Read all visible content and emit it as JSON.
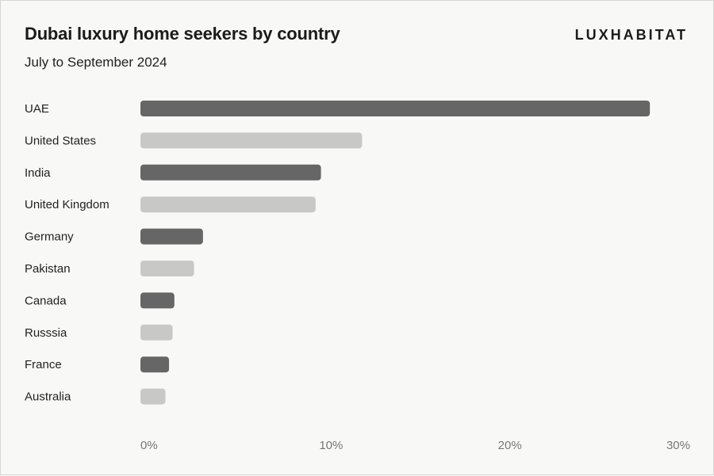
{
  "header": {
    "title": "Dubai luxury home seekers by country",
    "subtitle": "July to September 2024",
    "brand": "LUXHABITAT"
  },
  "colors": {
    "dark_bar": "#666666",
    "light_bar": "#c8c8c6",
    "background": "#f8f8f6"
  },
  "chart_data": {
    "type": "bar",
    "orientation": "horizontal",
    "title": "Dubai luxury home seekers by country",
    "subtitle": "July to September 2024",
    "categories": [
      "UAE",
      "United States",
      "India",
      "United Kingdom",
      "Germany",
      "Pakistan",
      "Canada",
      "Russsia",
      "France",
      "Australia"
    ],
    "values": [
      28.5,
      12.4,
      10.1,
      9.8,
      3.5,
      3.0,
      1.9,
      1.8,
      1.6,
      1.4
    ],
    "unit": "%",
    "xlim": [
      0,
      30
    ],
    "x_ticks": [
      "0%",
      "10%",
      "20%",
      "30%"
    ],
    "grid": false,
    "legend": "none"
  }
}
